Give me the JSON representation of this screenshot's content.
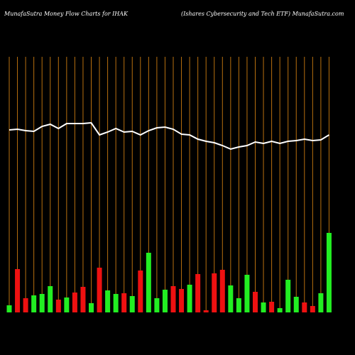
{
  "chart_data": {
    "type": "money-flow",
    "title": "MunafaSutra  Money Flow  Charts for IHAK",
    "subtitle": "(Ishares Cybersecurity and Tech ETF) MunafaSutra.com",
    "categories": [
      null,
      null,
      null,
      null,
      null,
      null,
      null,
      null,
      null,
      null,
      null,
      null,
      null,
      null,
      null,
      null,
      null,
      null,
      null,
      null,
      null,
      null,
      null,
      null,
      null,
      null,
      null,
      null,
      null,
      null,
      null,
      null,
      null,
      null,
      null,
      null,
      null,
      null,
      null,
      null
    ],
    "ylim": [
      0,
      360
    ],
    "flow": [
      10,
      61,
      20,
      24,
      26,
      37,
      18,
      21,
      28,
      36,
      13,
      63,
      31,
      26,
      27,
      23,
      59,
      84,
      20,
      32,
      37,
      33,
      39,
      54,
      3,
      55,
      60,
      38,
      20,
      53,
      29,
      14,
      15,
      6,
      46,
      22,
      14,
      9,
      27,
      112
    ],
    "flow_colors": [
      "#22ee22",
      "#ee1111",
      "#ee1111",
      "#22ee22",
      "#22ee22",
      "#22ee22",
      "#ee1111",
      "#22ee22",
      "#ee1111",
      "#ee1111",
      "#22ee22",
      "#ee1111",
      "#22ee22",
      "#22ee22",
      "#ee1111",
      "#22ee22",
      "#ee1111",
      "#22ee22",
      "#22ee22",
      "#22ee22",
      "#ee1111",
      "#ee1111",
      "#22ee22",
      "#ee1111",
      "#ee1111",
      "#ee1111",
      "#ee1111",
      "#22ee22",
      "#22ee22",
      "#22ee22",
      "#ee1111",
      "#22ee22",
      "#ee1111",
      "#22ee22",
      "#22ee22",
      "#22ee22",
      "#ee1111",
      "#ee1111",
      "#22ee22",
      "#22ee22"
    ],
    "price": [
      257,
      258,
      256,
      255,
      262,
      265,
      259,
      266,
      266,
      266,
      267,
      250,
      254,
      259,
      254,
      255,
      250,
      256,
      260,
      261,
      258,
      251,
      250,
      244,
      241,
      239,
      235,
      230,
      233,
      235,
      240,
      238,
      241,
      238,
      241,
      242,
      244,
      242,
      243,
      250
    ],
    "line_color": "#ffffff",
    "grid_color": "#b8700f"
  }
}
